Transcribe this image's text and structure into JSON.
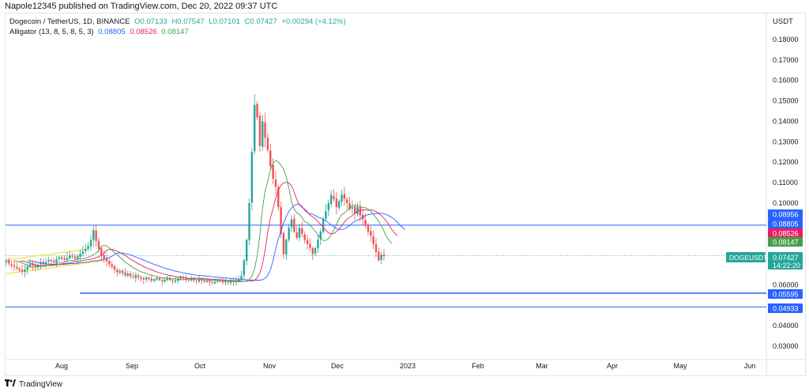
{
  "header": {
    "published": "Napole12345 published on TradingView.com, Dec 20, 2022 09:37 UTC"
  },
  "legend": {
    "symbol": "Dogecoin / TetherUS, 1D, BINANCE",
    "open": "O0.07133",
    "high": "H0.07547",
    "low": "L0.07101",
    "close": "C0.07427",
    "change": "+0.00294 (+4.12%)",
    "indicator": "Alligator (13, 8, 5, 8, 5, 3)",
    "jaw": "0.08805",
    "teeth": "0.08526",
    "lips": "0.08147"
  },
  "footer": {
    "brand": "TradingView",
    "logo_icon": "tradingview-logo-icon"
  },
  "colors": {
    "up": "#26a69a",
    "down": "#ef5350",
    "jaw": "#2962ff",
    "teeth": "#e91e63",
    "lips": "#43a047",
    "hline": "#2962ff",
    "wedge": "#f7e463"
  },
  "chart_data": {
    "type": "candlestick",
    "currency": "USDT",
    "y_ticks": [
      "0.18000",
      "0.17000",
      "0.16000",
      "0.15000",
      "0.14000",
      "0.13000",
      "0.12000",
      "0.11000",
      "0.10000",
      "0.06000",
      "0.04000",
      "0.03000"
    ],
    "y_range": [
      0.02,
      0.18
    ],
    "x_labels": [
      "Aug",
      "Sep",
      "Oct",
      "Nov",
      "Dec",
      "2023",
      "Feb",
      "Mar",
      "Apr",
      "May",
      "Jun"
    ],
    "price_tags": [
      {
        "value": 0.08956,
        "label": "0.08956",
        "color": "#2962ff"
      },
      {
        "value": 0.08805,
        "label": "0.08805",
        "color": "#2962ff"
      },
      {
        "value": 0.08526,
        "label": "0.08526",
        "color": "#e91e63"
      },
      {
        "value": 0.08147,
        "label": "0.08147",
        "color": "#43a047"
      },
      {
        "value": 0.07427,
        "label": "DOGEUSDT",
        "sub": "0.07427",
        "sub2": "14:22:20",
        "color": "#26a69a"
      },
      {
        "value": 0.05595,
        "label": "0.05595",
        "color": "#2962ff"
      },
      {
        "value": 0.04933,
        "label": "0.04933",
        "color": "#2962ff"
      }
    ],
    "horizontal_lines": [
      {
        "value": 0.0892,
        "style": "full"
      },
      {
        "value": 0.0559,
        "style": "partial"
      },
      {
        "value": 0.0492,
        "style": "full"
      }
    ],
    "last_price": 0.07427,
    "close_series": [
      0.0718,
      0.0705,
      0.0695,
      0.0688,
      0.068,
      0.0672,
      0.0665,
      0.0675,
      0.069,
      0.0702,
      0.0695,
      0.0688,
      0.0698,
      0.071,
      0.0705,
      0.0712,
      0.0722,
      0.0716,
      0.071,
      0.0725,
      0.0735,
      0.0728,
      0.0722,
      0.0732,
      0.0745,
      0.0738,
      0.073,
      0.074,
      0.0752,
      0.0762,
      0.0775,
      0.079,
      0.082,
      0.0868,
      0.0815,
      0.0775,
      0.0742,
      0.0728,
      0.0715,
      0.07,
      0.0688,
      0.0675,
      0.0662,
      0.0668,
      0.0658,
      0.0646,
      0.0655,
      0.0642,
      0.0636,
      0.0648,
      0.0638,
      0.063,
      0.0626,
      0.0636,
      0.0628,
      0.062,
      0.0628,
      0.0634,
      0.0624,
      0.0617,
      0.0626,
      0.0632,
      0.0624,
      0.0618,
      0.0622,
      0.063,
      0.064,
      0.0632,
      0.0626,
      0.0622,
      0.0628,
      0.0622,
      0.0619,
      0.0626,
      0.0621,
      0.0617,
      0.062,
      0.0614,
      0.0611,
      0.0615,
      0.062,
      0.0618,
      0.0613,
      0.0616,
      0.0612,
      0.0615,
      0.0618,
      0.062,
      0.0625,
      0.0645,
      0.072,
      0.082,
      0.1,
      0.125,
      0.148,
      0.142,
      0.128,
      0.14,
      0.132,
      0.126,
      0.118,
      0.112,
      0.108,
      0.098,
      0.085,
      0.075,
      0.082,
      0.088,
      0.092,
      0.086,
      0.083,
      0.088,
      0.085,
      0.082,
      0.08,
      0.078,
      0.075,
      0.078,
      0.082,
      0.086,
      0.092,
      0.096,
      0.1,
      0.104,
      0.102,
      0.098,
      0.101,
      0.104,
      0.102,
      0.1,
      0.097,
      0.098,
      0.095,
      0.098,
      0.094,
      0.092,
      0.089,
      0.086,
      0.084,
      0.08,
      0.076,
      0.072,
      0.0746,
      0.0742
    ],
    "candles_range_x": [
      8,
      486
    ]
  }
}
